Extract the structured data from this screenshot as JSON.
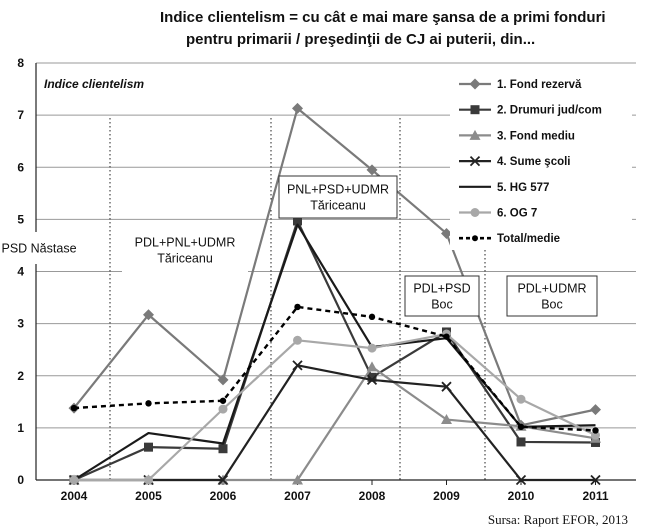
{
  "chart_data": {
    "type": "line",
    "title_lines": [
      "Indice clientelism = cu cât e mai mare şansa de a primi fonduri",
      "pentru primarii / preşedinţii de CJ ai puterii, din..."
    ],
    "ylabel": "Indice clientelism",
    "ylim": [
      0,
      8
    ],
    "yticks": [
      0,
      1,
      2,
      3,
      4,
      5,
      6,
      7,
      8
    ],
    "x": [
      "2004",
      "2005",
      "2006",
      "2007",
      "2008",
      "2009",
      "2010",
      "2011"
    ],
    "grid": true,
    "legend_position": "top-right",
    "series": [
      {
        "name": "1. Fond rezervă",
        "marker": "diamond",
        "color": "#7a7a7a",
        "dash": "",
        "values": [
          1.38,
          3.17,
          1.92,
          7.13,
          5.95,
          4.73,
          1.05,
          1.35
        ]
      },
      {
        "name": "2. Drumuri jud/com",
        "marker": "square",
        "color": "#3a3a3a",
        "dash": "",
        "values": [
          0,
          0.63,
          0.6,
          4.97,
          1.97,
          2.84,
          0.73,
          0.72
        ]
      },
      {
        "name": "3. Fond mediu",
        "marker": "triangle",
        "color": "#8c8c8c",
        "dash": "",
        "values": [
          0,
          0,
          0,
          0,
          2.17,
          1.16,
          1.03,
          0.8
        ]
      },
      {
        "name": "4. Sume şcoli",
        "marker": "x",
        "color": "#222222",
        "dash": "",
        "values": [
          0,
          0,
          0,
          2.2,
          1.92,
          1.79,
          0,
          0
        ]
      },
      {
        "name": "5. HG 577",
        "marker": "none",
        "color": "#1a1a1a",
        "dash": "",
        "values": [
          0,
          0.9,
          0.7,
          4.9,
          2.55,
          2.72,
          1.02,
          1.05
        ]
      },
      {
        "name": "6. OG 7",
        "marker": "circle",
        "color": "#a8a8a8",
        "dash": "",
        "values": [
          0,
          0,
          1.36,
          2.68,
          2.53,
          2.8,
          1.55,
          0.86
        ]
      },
      {
        "name": "Total/medie",
        "marker": "circle",
        "color": "#000000",
        "dash": "5,4",
        "values": [
          1.38,
          1.47,
          1.52,
          3.32,
          3.13,
          2.75,
          1.02,
          0.95
        ]
      }
    ],
    "annotations": [
      {
        "lines": [
          "PSD Năstase"
        ]
      },
      {
        "lines": [
          "PDL+PNL+UDMR",
          "Tăriceanu"
        ]
      },
      {
        "lines": [
          "PNL+PSD+UDMR",
          "Tăriceanu"
        ]
      },
      {
        "lines": [
          "PDL+PSD",
          "Boc"
        ]
      },
      {
        "lines": [
          "PDL+UDMR",
          "Boc"
        ]
      }
    ],
    "source": "Sursa: Raport EFOR, 2013"
  }
}
